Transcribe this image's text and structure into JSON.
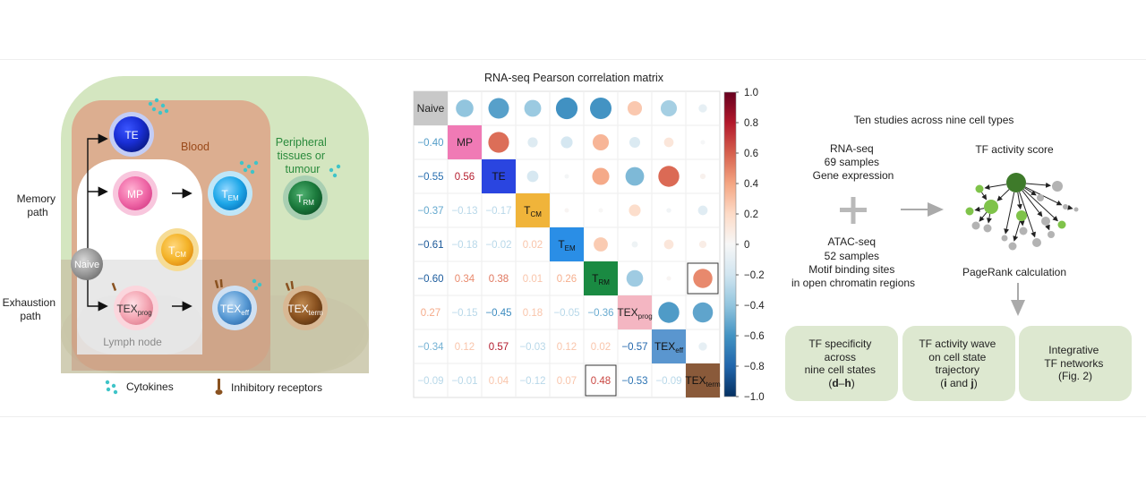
{
  "panel_a": {
    "region_blood": "Blood",
    "region_peripheral": [
      "Peripheral",
      "tissues or",
      "tumour"
    ],
    "region_lymph": "Lymph node",
    "path_memory": [
      "Memory",
      "path"
    ],
    "path_exhaustion": [
      "Exhaustion",
      "path"
    ],
    "cells": {
      "naive": "Naive",
      "te": "TE",
      "mp": "MP",
      "tem_main": "T",
      "tem_sub": "EM",
      "tcm_main": "T",
      "tcm_sub": "CM",
      "trm_main": "T",
      "trm_sub": "RM",
      "texprog_main": "TEX",
      "texprog_sub": "prog",
      "texeff_main": "TEX",
      "texeff_sub": "eff",
      "texterm_main": "TEX",
      "texterm_sub": "term"
    },
    "legend_cytokines": "Cytokines",
    "legend_receptors": "Inhibitory receptors",
    "colors": {
      "te": "#1a2fd6",
      "mp": "#f06aa8",
      "tem": "#1ea7e8",
      "tcm": "#f4b42a",
      "trm": "#1b7a3c",
      "texprog": "#f4a7b4",
      "texeff": "#5a9bd5",
      "texterm": "#8a5220",
      "naive": "#9a9a9a",
      "cytokine": "#3fc4c8"
    }
  },
  "chart_data": {
    "type": "heatmap",
    "title": "RNA-seq Pearson correlation matrix",
    "labels": [
      {
        "main": "Naive",
        "sub": ""
      },
      {
        "main": "MP",
        "sub": ""
      },
      {
        "main": "TE",
        "sub": ""
      },
      {
        "main": "T",
        "sub": "CM"
      },
      {
        "main": "T",
        "sub": "EM"
      },
      {
        "main": "T",
        "sub": "RM"
      },
      {
        "main": "TEX",
        "sub": "prog"
      },
      {
        "main": "TEX",
        "sub": "eff"
      },
      {
        "main": "TEX",
        "sub": "term"
      }
    ],
    "diag_colors": [
      "#c8c8c8",
      "#f07ab5",
      "#2a45e0",
      "#f0b43a",
      "#2a8ee6",
      "#1a8a42",
      "#f4b6c2",
      "#5a96cf",
      "#8a5a3a"
    ],
    "values": [
      [
        1,
        -0.4,
        -0.55,
        -0.37,
        -0.61,
        -0.6,
        0.27,
        -0.34,
        -0.09
      ],
      [
        -0.4,
        1,
        0.56,
        -0.13,
        -0.18,
        0.34,
        -0.15,
        0.12,
        -0.01
      ],
      [
        -0.55,
        0.56,
        1,
        -0.17,
        -0.02,
        0.38,
        -0.45,
        0.57,
        0.04
      ],
      [
        -0.37,
        -0.13,
        -0.17,
        1,
        0.02,
        0.01,
        0.18,
        -0.03,
        -0.12
      ],
      [
        -0.61,
        -0.18,
        -0.02,
        0.02,
        1,
        0.26,
        -0.05,
        0.12,
        0.07
      ],
      [
        -0.6,
        0.34,
        0.38,
        0.01,
        0.26,
        1,
        -0.36,
        0.02,
        0.48
      ],
      [
        0.27,
        -0.15,
        -0.45,
        0.18,
        -0.05,
        -0.36,
        1,
        -0.57,
        -0.53
      ],
      [
        -0.34,
        0.12,
        0.57,
        -0.03,
        0.12,
        0.02,
        -0.57,
        1,
        -0.09
      ],
      [
        -0.09,
        -0.01,
        0.04,
        -0.12,
        0.07,
        0.48,
        -0.53,
        -0.09,
        1
      ]
    ],
    "boxed_cells": [
      [
        5,
        8
      ],
      [
        8,
        5
      ]
    ],
    "colorbar_range": [
      -1.0,
      1.0
    ],
    "colorbar_ticks": [
      "1.0",
      "0.8",
      "0.6",
      "0.4",
      "0.2",
      "0",
      "−0.2",
      "−0.4",
      "−0.6",
      "−0.8",
      "−1.0"
    ],
    "colorbar_colors": [
      "#67001f",
      "#b2182b",
      "#d6604d",
      "#f4a582",
      "#fddbc7",
      "#f7f7f7",
      "#d1e5f0",
      "#92c5de",
      "#4393c3",
      "#2166ac",
      "#053061"
    ]
  },
  "panel_c": {
    "header": "Ten studies across nine cell types",
    "rnaseq": [
      "RNA-seq",
      "69 samples",
      "Gene expression"
    ],
    "atacseq": [
      "ATAC-seq",
      "52 samples",
      "Motif binding sites",
      "in open chromatin regions"
    ],
    "tf_activity_label": "TF activity score",
    "pagerank_label": "PageRank calculation",
    "boxes": [
      {
        "lines": [
          "TF specificity",
          "across",
          "nine cell states"
        ],
        "ref_open": "(",
        "ref_bold": "d",
        "ref_mid": "–",
        "ref_bold2": "h",
        "ref_close": ")"
      },
      {
        "lines": [
          "TF activity wave",
          "on cell state",
          "trajectory"
        ],
        "ref_open": "(",
        "ref_bold": "i",
        "ref_mid": " and ",
        "ref_bold2": "j",
        "ref_close": ")"
      },
      {
        "lines": [
          "Integrative",
          "TF networks",
          "(Fig. 2)"
        ]
      }
    ],
    "box_color": "#dde8d0",
    "network_colors": {
      "hub": "#3e7a2a",
      "mid": "#7fc34a",
      "grey": "#b3b3b3"
    }
  }
}
